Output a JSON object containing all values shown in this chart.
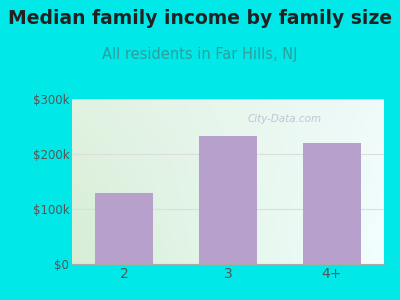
{
  "title": "Median family income by family size",
  "subtitle": "All residents in Far Hills, NJ",
  "categories": [
    "2",
    "3",
    "4+"
  ],
  "values": [
    130000,
    232000,
    220000
  ],
  "bar_color": "#b8a0cc",
  "ylim": [
    0,
    300000
  ],
  "yticks": [
    0,
    100000,
    200000,
    300000
  ],
  "ytick_labels": [
    "$0",
    "$100k",
    "$200k",
    "$300k"
  ],
  "title_fontsize": 13.5,
  "subtitle_fontsize": 10.5,
  "subtitle_color": "#2aa0a0",
  "title_color": "#222222",
  "tick_color": "#555555",
  "background_color": "#00e8e8",
  "plot_bg_color_topleft": "#e0efe0",
  "plot_bg_color_topright": "#eef5f5",
  "plot_bg_color_bottomleft": "#d8eedd",
  "plot_bg_color_bottomright": "#f5ffff",
  "watermark": "City-Data.com",
  "watermark_color": "#bbbbcc",
  "grid_color": "#dddddd"
}
